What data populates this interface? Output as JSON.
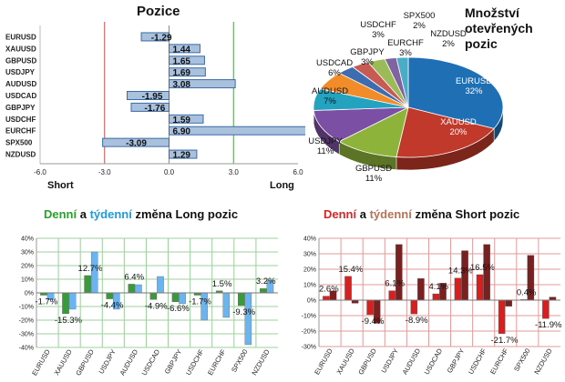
{
  "chart_data": [
    {
      "type": "bar",
      "orientation": "horizontal",
      "title": "Pozice",
      "categories": [
        "EURUSD",
        "XAUUSD",
        "GBPUSD",
        "USDJPY",
        "AUDUSD",
        "USDCAD",
        "GBPJPY",
        "USDCHF",
        "EURCHF",
        "SPX500",
        "NZDUSD"
      ],
      "values": [
        -1.29,
        1.44,
        1.65,
        1.69,
        3.08,
        -1.95,
        -1.76,
        1.59,
        6.9,
        -3.09,
        1.29
      ],
      "value_labels": [
        "-1.29",
        "1.44",
        "1.65",
        "1.69",
        "3.08",
        "-1.95",
        "-1.76",
        "1.59",
        "6.90",
        "-3.09",
        "1.29"
      ],
      "xlim": [
        -6,
        6
      ],
      "xticks": [
        "-6.0",
        "-3.0",
        "0.0",
        "3.0",
        "6.0"
      ],
      "side_labels": {
        "left": "Short",
        "right": "Long"
      },
      "colors": {
        "bar_fill": "#a9c1dd",
        "bar_stroke": "#3a6aa6",
        "short_line": "#c0504d",
        "long_line": "#4fa04f"
      }
    },
    {
      "type": "pie",
      "title": "Množství otevřených pozic",
      "title_lines": [
        "Množství",
        "otevřených",
        "pozic"
      ],
      "slices": [
        {
          "label": "EURUSD",
          "value": 32,
          "text": "32%",
          "color": "#1f6fb5"
        },
        {
          "label": "XAUUSD",
          "value": 20,
          "text": "20%",
          "color": "#c0392b"
        },
        {
          "label": "GBPUSD",
          "value": 11,
          "text": "11%",
          "color": "#8db33a"
        },
        {
          "label": "USDJPY",
          "value": 11,
          "text": "11%",
          "color": "#7b4fa3"
        },
        {
          "label": "AUDUSD",
          "value": 7,
          "text": "7%",
          "color": "#23a3bf"
        },
        {
          "label": "USDCAD",
          "value": 6,
          "text": "6%",
          "color": "#f28c28"
        },
        {
          "label": "GBPJPY",
          "value": 3,
          "text": "3%",
          "color": "#3d6cb0"
        },
        {
          "label": "EURCHF",
          "value": 3,
          "text": "3%",
          "color": "#c85a54"
        },
        {
          "label": "USDCHF",
          "value": 3,
          "text": "3%",
          "color": "#9bbb59"
        },
        {
          "label": "SPX500",
          "value": 2,
          "text": "2%",
          "color": "#8064a2"
        },
        {
          "label": "NZDUSD",
          "value": 2,
          "text": "2%",
          "color": "#4bacc6"
        }
      ]
    },
    {
      "type": "bar",
      "title_parts": [
        {
          "text": "Denní",
          "color": "#2ca02c"
        },
        {
          "text": " a ",
          "color": "#111111"
        },
        {
          "text": "týdenní",
          "color": "#1f9bde"
        },
        {
          "text": " změna Long pozic",
          "color": "#111111"
        }
      ],
      "categories": [
        "EURUSD",
        "XAUUSD",
        "GBPUSD",
        "USDJPY",
        "AUDUSD",
        "USDCAD",
        "GBPJPY",
        "USDCHF",
        "EURCHF",
        "SPX500",
        "NZDUSD"
      ],
      "series": [
        {
          "name": "Denní",
          "values": [
            -1.7,
            -15.3,
            12.7,
            -4.4,
            6.4,
            -4.9,
            -6.6,
            -1.7,
            1.5,
            -9.3,
            3.2
          ],
          "color": "#3a9a3a"
        },
        {
          "name": "týdenní",
          "values": [
            -5,
            -12,
            30,
            -12,
            6,
            12,
            -8,
            -20,
            -18,
            -38,
            9
          ],
          "color": "#6ab4f0"
        }
      ],
      "data_labels": [
        {
          "category": "EURUSD",
          "text": "-1.7%"
        },
        {
          "category": "XAUUSD",
          "text": "-15.3%"
        },
        {
          "category": "GBPUSD",
          "text": "12.7%"
        },
        {
          "category": "USDJPY",
          "text": "-4.4%"
        },
        {
          "category": "AUDUSD",
          "text": "6.4%"
        },
        {
          "category": "USDCAD",
          "text": "-4.9%"
        },
        {
          "category": "GBPJPY",
          "text": "-6.6%"
        },
        {
          "category": "USDCHF",
          "text": "-1.7%"
        },
        {
          "category": "EURCHF",
          "text": "1.5%"
        },
        {
          "category": "SPX500",
          "text": "-9.3%"
        },
        {
          "category": "NZDUSD",
          "text": "3.2%"
        }
      ],
      "ylim": [
        -40,
        40
      ],
      "yticks": [
        "-40%",
        "-30%",
        "-20%",
        "-10%",
        "0%",
        "10%",
        "20%",
        "30%",
        "40%"
      ],
      "grid": true
    },
    {
      "type": "bar",
      "title_parts": [
        {
          "text": "Denní",
          "color": "#d62728"
        },
        {
          "text": " a ",
          "color": "#111111"
        },
        {
          "text": "týdenní",
          "color": "#b5745a"
        },
        {
          "text": " změna Short pozic",
          "color": "#111111"
        }
      ],
      "categories": [
        "EURUSD",
        "XAUUSD",
        "GBPUSD",
        "USDJPY",
        "AUDUSD",
        "USDCAD",
        "GBPJPY",
        "USDCHF",
        "EURCHF",
        "SPX500",
        "NZDUSD"
      ],
      "series": [
        {
          "name": "Denní",
          "values": [
            2.6,
            15.4,
            -9.4,
            6.1,
            -8.9,
            4.1,
            14.3,
            16.5,
            -21.7,
            0.4,
            -11.9
          ],
          "color": "#d62020"
        },
        {
          "name": "týdenní",
          "values": [
            6,
            -2,
            -15,
            36,
            14,
            11,
            32,
            36,
            -4,
            29,
            2
          ],
          "color": "#7a2020"
        }
      ],
      "data_labels": [
        {
          "category": "EURUSD",
          "text": "2.6%"
        },
        {
          "category": "XAUUSD",
          "text": "15.4%"
        },
        {
          "category": "GBPUSD",
          "text": "-9.4%"
        },
        {
          "category": "USDJPY",
          "text": "6.1%"
        },
        {
          "category": "AUDUSD",
          "text": "-8.9%"
        },
        {
          "category": "USDCAD",
          "text": "4.1%"
        },
        {
          "category": "GBPJPY",
          "text": "14.3%"
        },
        {
          "category": "USDCHF",
          "text": "16.5%"
        },
        {
          "category": "EURCHF",
          "text": "-21.7%"
        },
        {
          "category": "SPX500",
          "text": "0.4%"
        },
        {
          "category": "NZDUSD",
          "text": "-11.9%"
        }
      ],
      "ylim": [
        -30,
        40
      ],
      "yticks": [
        "-30%",
        "-20%",
        "-10%",
        "0%",
        "10%",
        "20%",
        "30%",
        "40%"
      ],
      "grid": true
    }
  ]
}
